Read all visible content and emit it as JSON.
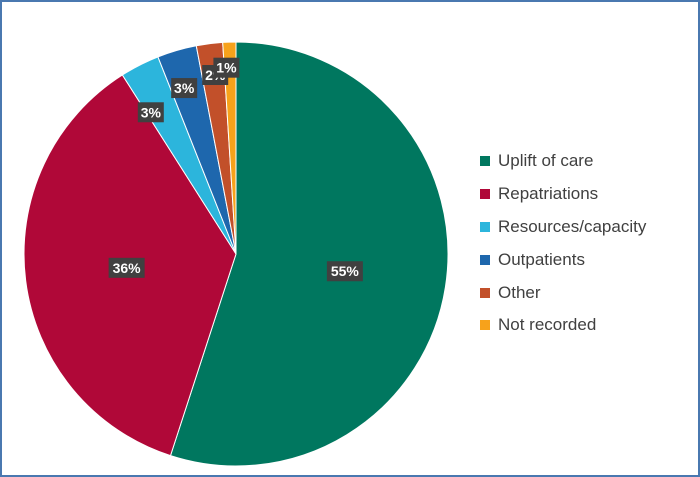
{
  "chart_data": {
    "type": "pie",
    "categories": [
      "Uplift of care",
      "Repatriations",
      "Resources/capacity",
      "Outpatients",
      "Other",
      "Not recorded"
    ],
    "values": [
      55,
      36,
      3,
      3,
      2,
      1
    ],
    "data_labels": [
      "55%",
      "36%",
      "3%",
      "3%",
      "2%",
      "1%"
    ],
    "colors": [
      "#00775f",
      "#b00838",
      "#2cb5dc",
      "#1e67ad",
      "#c2502a",
      "#f7a21b"
    ],
    "legend_position": "right",
    "start_angle": "12 o'clock",
    "direction": "clockwise"
  }
}
